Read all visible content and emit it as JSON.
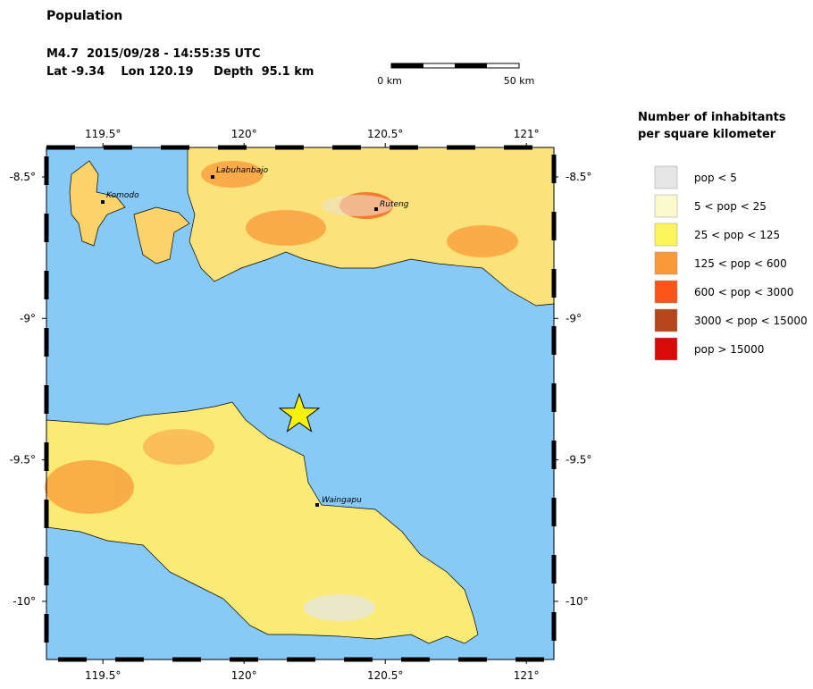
{
  "header": {
    "title": "Population",
    "event": "M4.7  2015/09/28 - 14:55:35 UTC",
    "location": "Lat -9.34    Lon 120.19     Depth  95.1 km"
  },
  "scale_bar": {
    "start_label": "0 km",
    "end_label": "50 km"
  },
  "map": {
    "lon_ticks": [
      {
        "value": 119.5,
        "label": "119.5°"
      },
      {
        "value": 120,
        "label": "120°"
      },
      {
        "value": 120.5,
        "label": "120.5°"
      },
      {
        "value": 121,
        "label": "121°"
      }
    ],
    "lat_ticks": [
      {
        "value": -8.5,
        "label": "-8.5°"
      },
      {
        "value": -9,
        "label": "-9°"
      },
      {
        "value": -9.5,
        "label": "-9.5°"
      },
      {
        "value": -10,
        "label": "-10°"
      }
    ],
    "places": [
      "Labuhanbajo",
      "Komodo",
      "Ruteng",
      "Waingapu"
    ]
  },
  "legend": {
    "title": [
      "Number of inhabitants",
      "per square kilometer"
    ],
    "items": [
      {
        "label": "pop < 5",
        "color": "#e6e6e6"
      },
      {
        "label": "5 < pop < 25",
        "color": "#fbfacc"
      },
      {
        "label": "25 < pop < 125",
        "color": "#fcf65c"
      },
      {
        "label": "125 < pop < 600",
        "color": "#f9993a"
      },
      {
        "label": "600 < pop < 3000",
        "color": "#fb5519"
      },
      {
        "label": "3000 < pop < 15000",
        "color": "#b5461a"
      },
      {
        "label": "pop > 15000",
        "color": "#d90a0a"
      }
    ]
  }
}
